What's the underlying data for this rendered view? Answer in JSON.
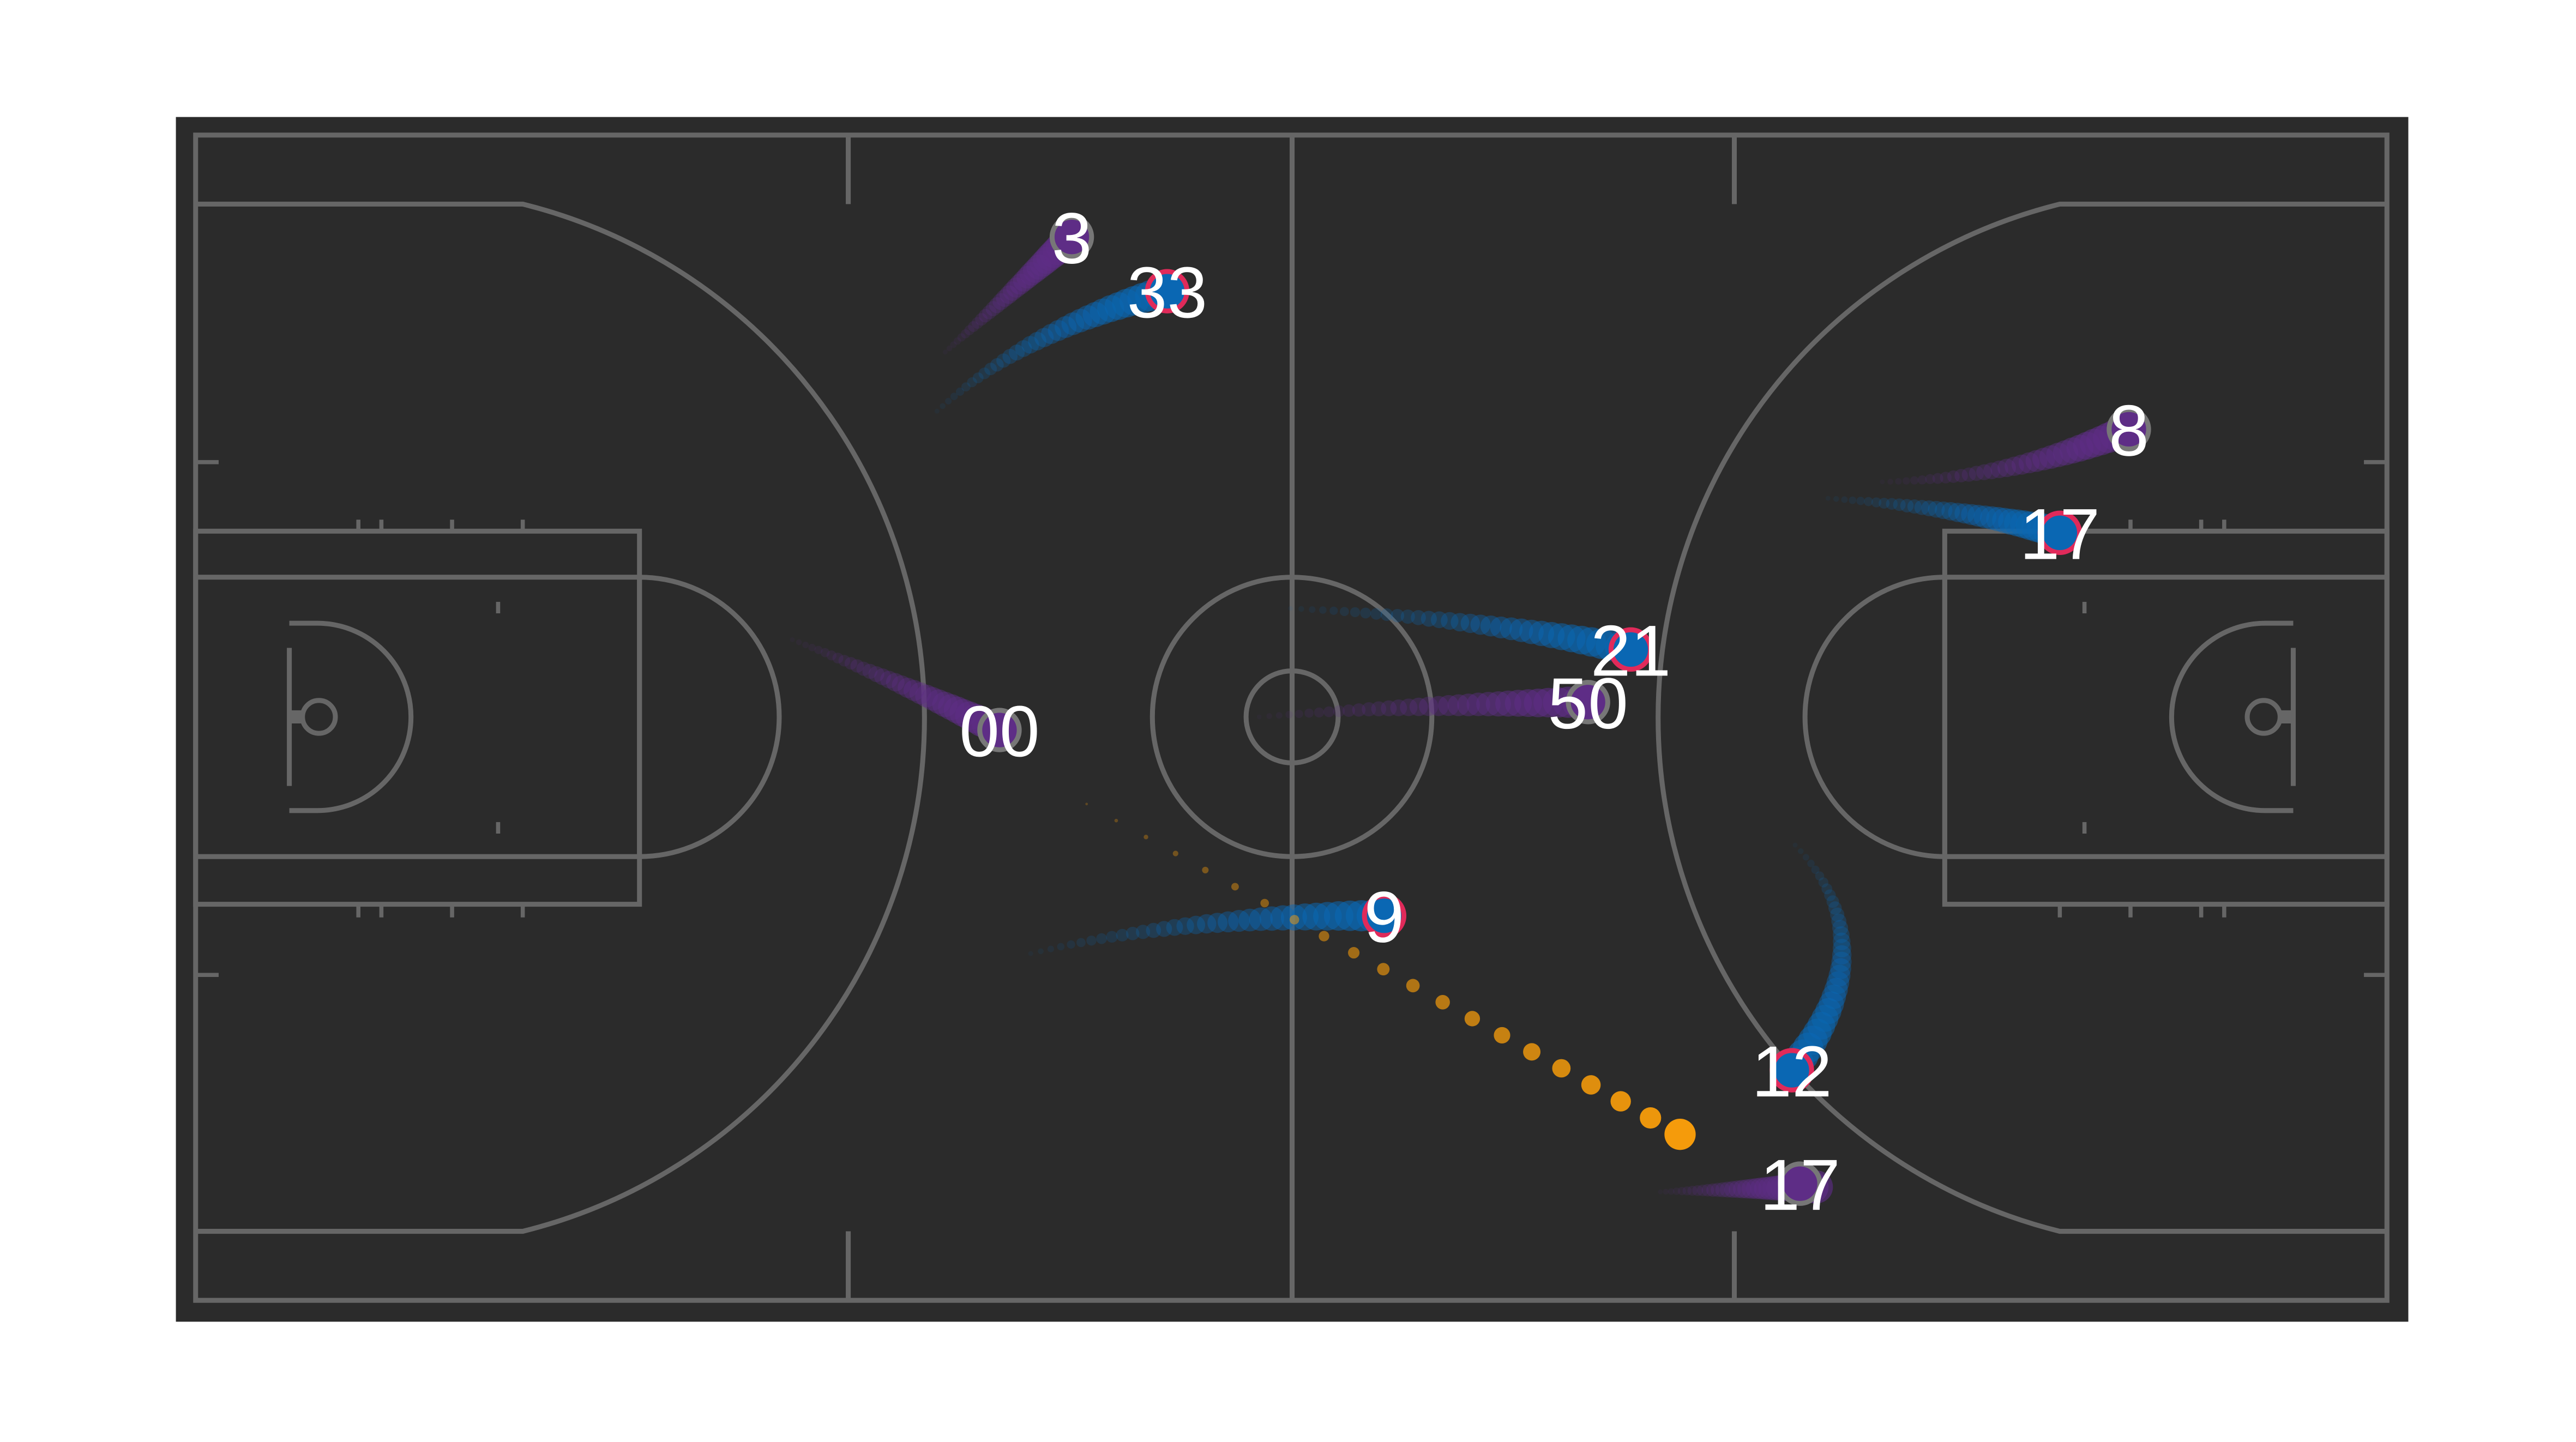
{
  "court": {
    "background": "#2b2b2b",
    "line_color": "#666666"
  },
  "teams": {
    "blue": {
      "fill": "#0a67b3",
      "ring": "#e02a5a",
      "trail": "#0a67b3"
    },
    "purple": {
      "fill": "#5e2d86",
      "ring": "#777777",
      "trail": "#5e2d86"
    }
  },
  "ball": {
    "color": "#f59b0b"
  },
  "players": [
    {
      "team": "purple",
      "number": "3"
    },
    {
      "team": "blue",
      "number": "33"
    },
    {
      "team": "purple",
      "number": "00"
    },
    {
      "team": "blue",
      "number": "21"
    },
    {
      "team": "purple",
      "number": "50"
    },
    {
      "team": "blue",
      "number": "9"
    },
    {
      "team": "purple",
      "number": "8"
    },
    {
      "team": "blue",
      "number": "17"
    },
    {
      "team": "blue",
      "number": "12"
    },
    {
      "team": "purple",
      "number": "17"
    }
  ]
}
